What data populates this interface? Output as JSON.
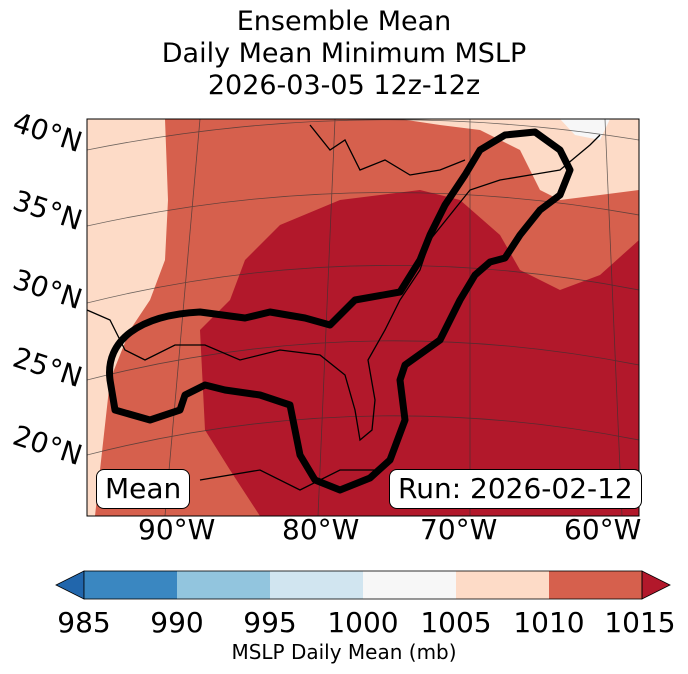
{
  "title": {
    "line1": "Ensemble Mean",
    "line2": "Daily Mean Minimum MSLP",
    "line3": "2026-03-05 12z-12z"
  },
  "lat_labels": [
    "40°N",
    "35°N",
    "30°N",
    "25°N",
    "20°N"
  ],
  "lon_labels": [
    "90°W",
    "80°W",
    "70°W",
    "60°W"
  ],
  "mean_box": "Mean",
  "run_box": "Run: 2026-02-12",
  "colorbar": {
    "ticks": [
      "985",
      "990",
      "995",
      "1000",
      "1005",
      "1010",
      "1015"
    ],
    "label": "MSLP Daily Mean (mb)",
    "colors": [
      "#3a87c1",
      "#92c5de",
      "#d1e5f0",
      "#f7f7f7",
      "#fddbc7",
      "#d6604d",
      "#b2182b"
    ]
  },
  "map_colors": {
    "band_1005_1010": "#fddbc7",
    "band_1010_1015": "#d6604d",
    "band_above_1015": "#b2182b",
    "band_1000_1005": "#f7f7f7"
  }
}
